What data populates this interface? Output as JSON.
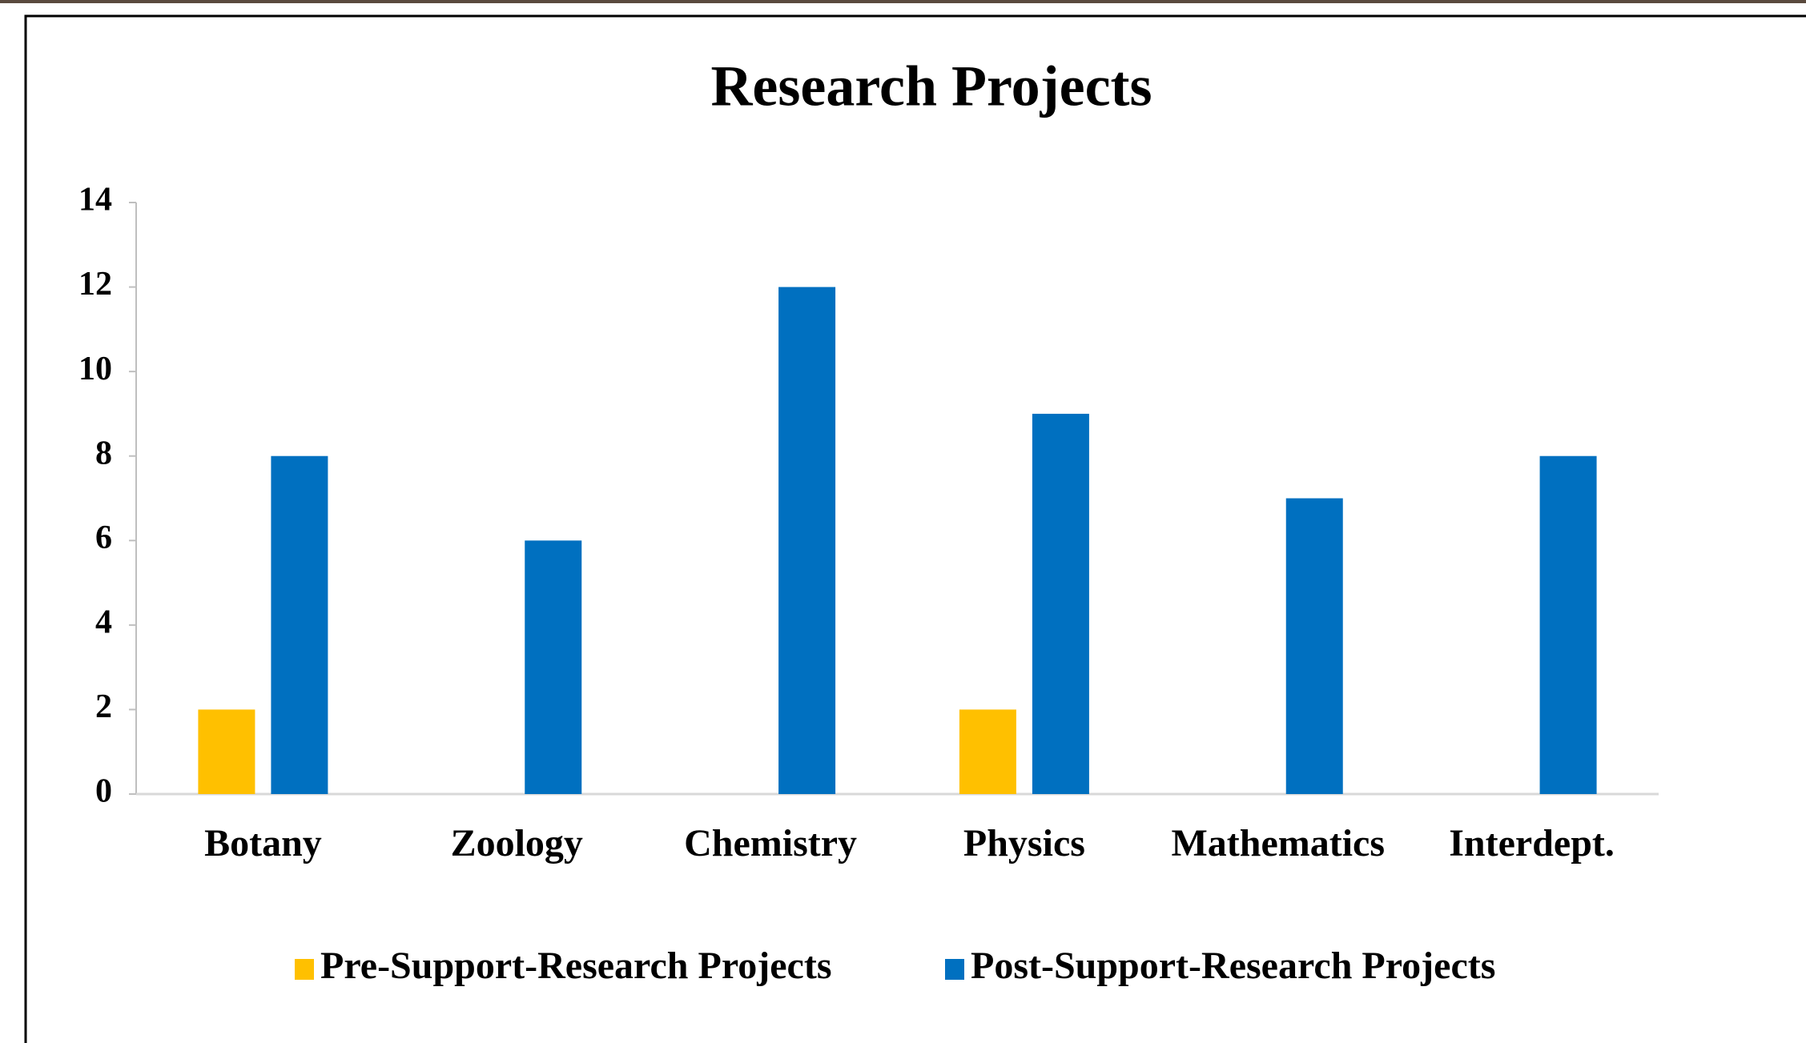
{
  "chart_data": {
    "type": "bar",
    "title": "Research Projects",
    "categories": [
      "Botany",
      "Zoology",
      "Chemistry",
      "Physics",
      "Mathematics",
      "Interdept."
    ],
    "series": [
      {
        "name": "Pre-Support-Research Projects",
        "color": "#FFC000",
        "values": [
          2,
          0,
          0,
          2,
          0,
          0
        ]
      },
      {
        "name": "Post-Support-Research Projects",
        "color": "#0070C0",
        "values": [
          8,
          6,
          12,
          9,
          7,
          8
        ]
      }
    ],
    "ylim": [
      0,
      14
    ],
    "yticks": [
      0,
      2,
      4,
      6,
      8,
      10,
      12,
      14
    ],
    "grid": false,
    "legend": "bottom"
  }
}
